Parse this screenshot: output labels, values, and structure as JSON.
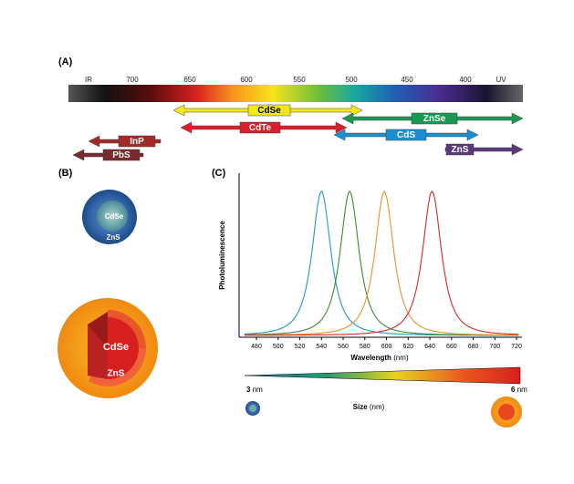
{
  "panel_a": {
    "label": "(A)",
    "spectrum_labels": [
      "IR",
      "700",
      "650",
      "600",
      "550",
      "500",
      "450",
      "400",
      "UV"
    ],
    "materials": [
      "CdSe",
      "ZnSe",
      "CdTe",
      "CdS",
      "InP",
      "ZnS",
      "PbS"
    ]
  },
  "panel_b": {
    "label": "(B)",
    "small": {
      "core": "CdSe",
      "shell": "ZnS"
    },
    "large": {
      "core": "CdSe",
      "shell": "ZnS"
    }
  },
  "chart_data": {
    "type": "line",
    "label": "(C)",
    "y_label": "Photoluminescence",
    "x_label": "Wavelength",
    "x_unit": "(nm)",
    "xlim": [
      464,
      725
    ],
    "xticks": [
      480,
      500,
      520,
      540,
      560,
      580,
      600,
      620,
      640,
      660,
      680,
      700,
      720
    ],
    "series": [
      {
        "color": "#1a9bc9",
        "peak": 540
      },
      {
        "color": "#3f8a2e",
        "peak": 566
      },
      {
        "color": "#e8922a",
        "peak": 598
      },
      {
        "color": "#d42a2a",
        "peak": 642
      }
    ],
    "size_label": "Size",
    "size_unit": "(nm)",
    "size_min": "3",
    "size_max": "6",
    "unit": "nm"
  }
}
